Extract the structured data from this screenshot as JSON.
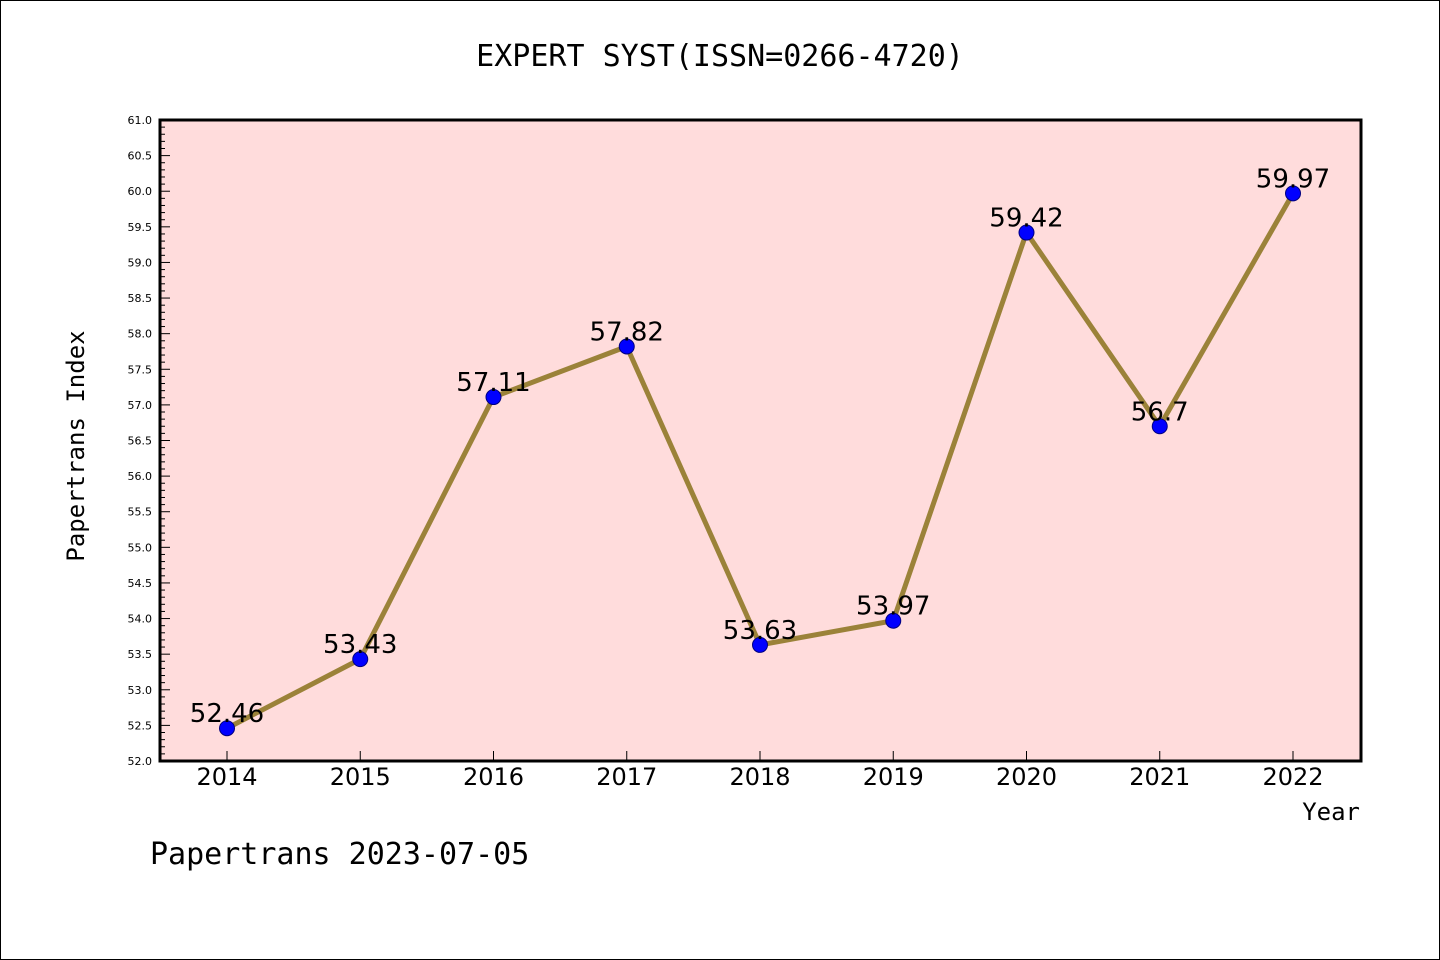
{
  "chart_data": {
    "type": "line",
    "title": "EXPERT SYST(ISSN=0266-4720)",
    "xlabel": "Year",
    "ylabel": "Papertrans Index",
    "categories": [
      "2014",
      "2015",
      "2016",
      "2017",
      "2018",
      "2019",
      "2020",
      "2021",
      "2022"
    ],
    "values": [
      52.46,
      53.43,
      57.11,
      57.82,
      53.63,
      53.97,
      59.42,
      56.7,
      59.97
    ],
    "data_labels": [
      "52.46",
      "53.43",
      "57.11",
      "57.82",
      "53.63",
      "53.97",
      "59.42",
      "56.7",
      "59.97"
    ],
    "ylim": [
      52.0,
      61.0
    ],
    "yticks": [
      "52.0",
      "52.5",
      "53.0",
      "53.5",
      "54.0",
      "54.5",
      "55.0",
      "55.5",
      "56.0",
      "56.5",
      "57.0",
      "57.5",
      "58.0",
      "58.5",
      "59.0",
      "59.5",
      "60.0",
      "60.5",
      "61.0"
    ],
    "grid": false,
    "legend": "none",
    "colors": {
      "plot_background": "#ffdcdc",
      "line": "#9b8239",
      "marker": "#0000ff",
      "marker_edge": "#000080",
      "axis": "#000000"
    }
  },
  "footer": "Papertrans 2023-07-05"
}
